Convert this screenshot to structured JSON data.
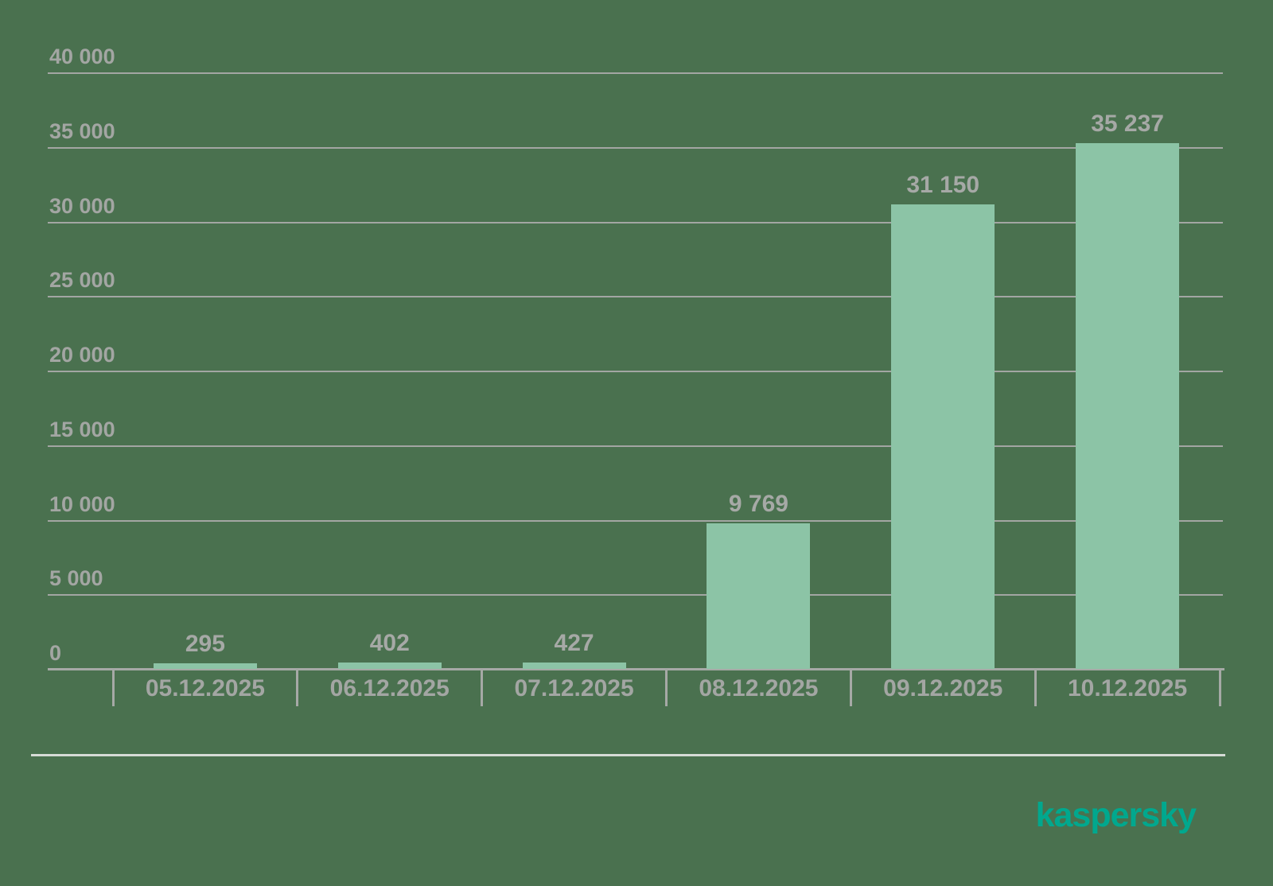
{
  "chart_data": {
    "type": "bar",
    "title": "",
    "xlabel": "",
    "ylabel": "",
    "categories": [
      "05.12.2025",
      "06.12.2025",
      "07.12.2025",
      "08.12.2025",
      "09.12.2025",
      "10.12.2025"
    ],
    "values": [
      295,
      402,
      427,
      9769,
      31150,
      35237
    ],
    "value_labels": [
      "295",
      "402",
      "427",
      "9 769",
      "31 150",
      "35 237"
    ],
    "ylim": [
      0,
      40000
    ],
    "y_ticks": [
      0,
      5000,
      10000,
      15000,
      20000,
      25000,
      30000,
      35000,
      40000
    ],
    "y_tick_labels": [
      "0",
      "5 000",
      "10 000",
      "15 000",
      "20 000",
      "25 000",
      "30 000",
      "35 000",
      "40 000"
    ],
    "grid": true,
    "legend_position": "none"
  },
  "branding": {
    "logo_text": "kaspersky"
  },
  "colors": {
    "background": "#4A714F",
    "bar_fill": "#8CC4A6",
    "gridline": "#A3A6A3",
    "axis": "#A6A9A6",
    "label_text": "#A3A6A3",
    "value_text": "#A6A9A6",
    "divider": "#D6DBD6",
    "logo": "#00A88E"
  }
}
